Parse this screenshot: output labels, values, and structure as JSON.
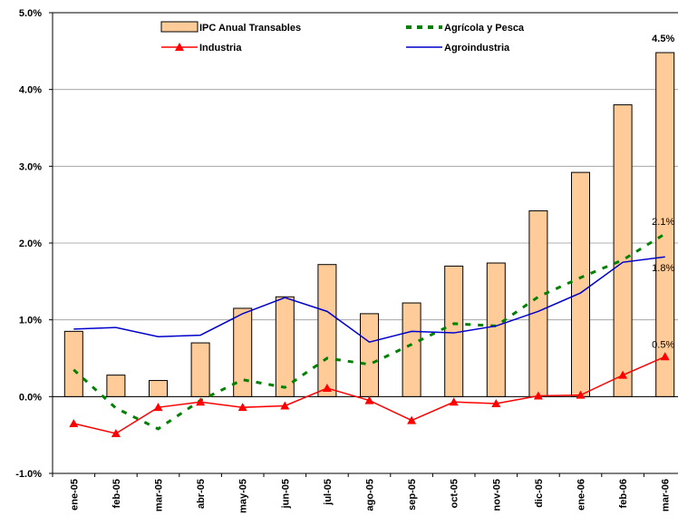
{
  "chart_data": {
    "type": "bar_line",
    "categories": [
      "ene-05",
      "feb-05",
      "mar-05",
      "abr-05",
      "may-05",
      "jun-05",
      "jul-05",
      "ago-05",
      "sep-05",
      "oct-05",
      "nov-05",
      "dic-05",
      "ene-06",
      "feb-06",
      "mar-06"
    ],
    "series": [
      {
        "name": "IPC Anual Transables",
        "kind": "bar",
        "color": "#ffcc99",
        "edge": "#000000",
        "values": [
          0.85,
          0.28,
          0.21,
          0.7,
          1.15,
          1.3,
          1.72,
          1.08,
          1.22,
          1.7,
          1.74,
          2.42,
          2.92,
          3.8,
          4.48
        ],
        "value_labels": [
          null,
          null,
          null,
          null,
          null,
          null,
          null,
          null,
          null,
          null,
          null,
          null,
          null,
          null,
          "4.5%"
        ]
      },
      {
        "name": "Agrícola y Pesca",
        "kind": "dashed",
        "color": "#008000",
        "values": [
          0.35,
          -0.15,
          -0.42,
          -0.05,
          0.22,
          0.12,
          0.5,
          0.42,
          0.68,
          0.95,
          0.92,
          1.3,
          1.55,
          1.78,
          2.12
        ],
        "value_labels": [
          null,
          null,
          null,
          null,
          null,
          null,
          null,
          null,
          null,
          null,
          null,
          null,
          null,
          null,
          "2.1%"
        ]
      },
      {
        "name": "Industria",
        "kind": "triangle",
        "color": "#ff0000",
        "values": [
          -0.35,
          -0.48,
          -0.14,
          -0.07,
          -0.14,
          -0.12,
          0.11,
          -0.05,
          -0.31,
          -0.07,
          -0.09,
          0.01,
          0.02,
          0.28,
          0.52
        ],
        "value_labels": [
          null,
          null,
          null,
          null,
          null,
          null,
          null,
          null,
          null,
          null,
          null,
          null,
          null,
          null,
          "0.5%"
        ]
      },
      {
        "name": "Agroindustria",
        "kind": "line",
        "color": "#0000cc",
        "values": [
          0.88,
          0.9,
          0.78,
          0.8,
          1.08,
          1.29,
          1.11,
          0.71,
          0.85,
          0.83,
          0.92,
          1.11,
          1.35,
          1.75,
          1.82
        ],
        "value_labels": [
          null,
          null,
          null,
          null,
          null,
          null,
          null,
          null,
          null,
          null,
          null,
          null,
          null,
          null,
          "1.8%"
        ]
      }
    ],
    "ylim": [
      -1,
      5
    ],
    "yticks": [
      {
        "value": -1,
        "label": "-1.0%"
      },
      {
        "value": 0,
        "label": "0.0%"
      },
      {
        "value": 1,
        "label": "1.0%"
      },
      {
        "value": 2,
        "label": "2.0%"
      },
      {
        "value": 3,
        "label": "3.0%"
      },
      {
        "value": 4,
        "label": "4.0%"
      },
      {
        "value": 5,
        "label": "5.0%"
      }
    ],
    "grid": true
  }
}
